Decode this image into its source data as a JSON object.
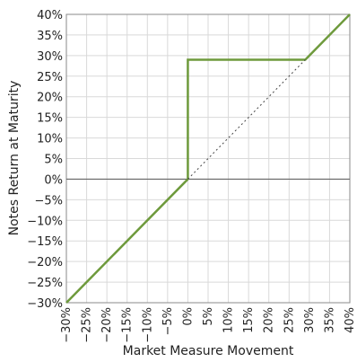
{
  "chart_data": {
    "type": "line",
    "title": "",
    "xlabel": "Market Measure Movement",
    "ylabel": "Notes Return at Maturity",
    "xlim": [
      -30,
      40
    ],
    "ylim": [
      -30,
      40
    ],
    "grid": true,
    "x_ticks": [
      -30,
      -25,
      -20,
      -15,
      -10,
      -5,
      0,
      5,
      10,
      15,
      20,
      25,
      30,
      35,
      40
    ],
    "y_ticks": [
      -30,
      -25,
      -20,
      -15,
      -10,
      -5,
      0,
      5,
      10,
      15,
      20,
      25,
      30,
      35,
      40
    ],
    "x_tick_labels": [
      "−30%",
      "−25%",
      "−20%",
      "−15%",
      "−10%",
      "−5%",
      "0%",
      "5%",
      "10%",
      "15%",
      "20%",
      "25%",
      "30%",
      "35%",
      "40%"
    ],
    "y_tick_labels": [
      "−30%",
      "−25%",
      "−20%",
      "−15%",
      "−10%",
      "−5%",
      "0%",
      "5%",
      "10%",
      "15%",
      "20%",
      "25%",
      "30%",
      "35%",
      "40%"
    ],
    "series": [
      {
        "color": "#6e9a3c",
        "style": "solid",
        "points": [
          [
            -30,
            -30
          ],
          [
            0,
            0
          ],
          [
            0,
            29
          ],
          [
            29,
            29
          ],
          [
            40,
            40
          ]
        ]
      },
      {
        "color": "#444444",
        "style": "dotted",
        "points": [
          [
            0,
            0
          ],
          [
            29,
            29
          ]
        ]
      }
    ],
    "zero_line_color": "#666666",
    "grid_color": "#d9d9d9"
  }
}
